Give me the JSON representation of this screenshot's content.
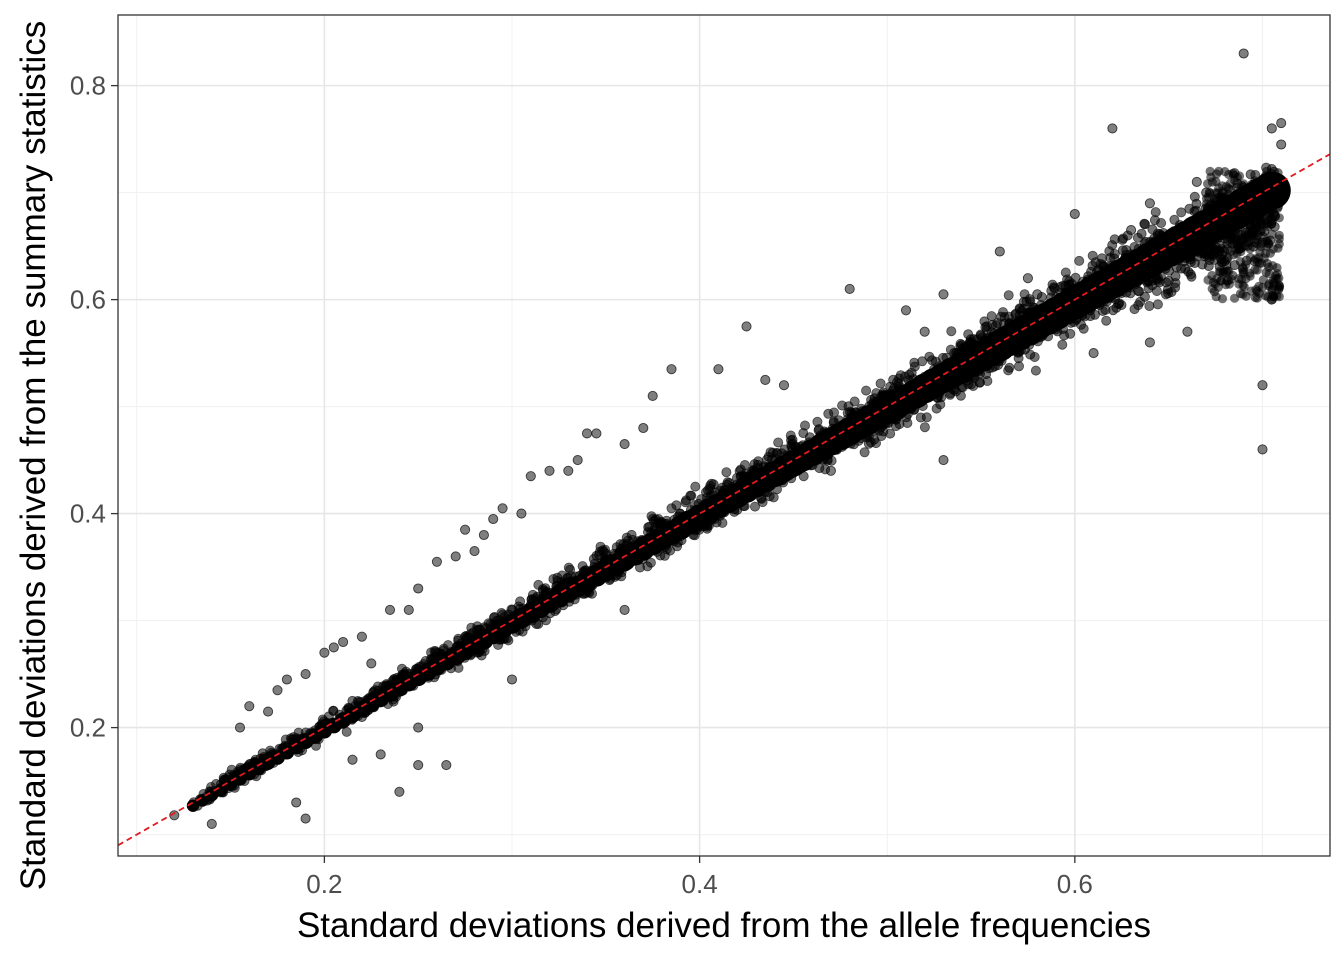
{
  "chart_data": {
    "type": "scatter",
    "xlabel": "Standard deviations derived from the allele frequencies",
    "ylabel": "Standard deviations derived from the summary statistics",
    "xlim": [
      0.09,
      0.736
    ],
    "ylim": [
      0.08,
      0.866
    ],
    "x_ticks": [
      0.2,
      0.4,
      0.6
    ],
    "x_tick_labels": [
      "0.2",
      "0.4",
      "0.6"
    ],
    "y_ticks": [
      0.2,
      0.4,
      0.6,
      0.8
    ],
    "y_tick_labels": [
      "0.2",
      "0.4",
      "0.6",
      "0.8"
    ],
    "grid": true,
    "reference_line": {
      "slope": 1,
      "intercept": 0,
      "style": "dashed",
      "color": "#e41a1c"
    },
    "point_color": "#000000",
    "point_opacity": 0.5,
    "dense_band": {
      "x_range": [
        0.13,
        0.707
      ],
      "y_equals_x_spread": 0.025,
      "note_spread_grows_with_x": true
    },
    "outliers": [
      [
        0.12,
        0.118
      ],
      [
        0.14,
        0.11
      ],
      [
        0.155,
        0.2
      ],
      [
        0.16,
        0.22
      ],
      [
        0.17,
        0.215
      ],
      [
        0.175,
        0.235
      ],
      [
        0.18,
        0.245
      ],
      [
        0.185,
        0.13
      ],
      [
        0.19,
        0.25
      ],
      [
        0.19,
        0.115
      ],
      [
        0.2,
        0.27
      ],
      [
        0.205,
        0.275
      ],
      [
        0.21,
        0.28
      ],
      [
        0.215,
        0.17
      ],
      [
        0.22,
        0.285
      ],
      [
        0.22,
        0.21
      ],
      [
        0.225,
        0.26
      ],
      [
        0.23,
        0.175
      ],
      [
        0.235,
        0.31
      ],
      [
        0.24,
        0.14
      ],
      [
        0.245,
        0.31
      ],
      [
        0.25,
        0.33
      ],
      [
        0.25,
        0.165
      ],
      [
        0.26,
        0.355
      ],
      [
        0.265,
        0.165
      ],
      [
        0.27,
        0.36
      ],
      [
        0.275,
        0.385
      ],
      [
        0.28,
        0.365
      ],
      [
        0.285,
        0.38
      ],
      [
        0.29,
        0.395
      ],
      [
        0.295,
        0.405
      ],
      [
        0.305,
        0.4
      ],
      [
        0.31,
        0.435
      ],
      [
        0.32,
        0.44
      ],
      [
        0.33,
        0.44
      ],
      [
        0.335,
        0.45
      ],
      [
        0.34,
        0.475
      ],
      [
        0.345,
        0.475
      ],
      [
        0.36,
        0.465
      ],
      [
        0.37,
        0.48
      ],
      [
        0.375,
        0.51
      ],
      [
        0.385,
        0.535
      ],
      [
        0.41,
        0.535
      ],
      [
        0.425,
        0.575
      ],
      [
        0.435,
        0.525
      ],
      [
        0.445,
        0.52
      ],
      [
        0.455,
        0.45
      ],
      [
        0.48,
        0.61
      ],
      [
        0.51,
        0.59
      ],
      [
        0.52,
        0.57
      ],
      [
        0.53,
        0.605
      ],
      [
        0.56,
        0.645
      ],
      [
        0.575,
        0.62
      ],
      [
        0.58,
        0.605
      ],
      [
        0.6,
        0.68
      ],
      [
        0.62,
        0.76
      ],
      [
        0.63,
        0.665
      ],
      [
        0.64,
        0.69
      ],
      [
        0.665,
        0.71
      ],
      [
        0.67,
        0.7
      ],
      [
        0.68,
        0.69
      ],
      [
        0.69,
        0.83
      ],
      [
        0.7,
        0.52
      ],
      [
        0.7,
        0.46
      ],
      [
        0.705,
        0.76
      ],
      [
        0.71,
        0.765
      ],
      [
        0.71,
        0.745
      ],
      [
        0.705,
        0.6
      ],
      [
        0.64,
        0.56
      ],
      [
        0.66,
        0.57
      ],
      [
        0.61,
        0.55
      ],
      [
        0.53,
        0.45
      ],
      [
        0.47,
        0.44
      ],
      [
        0.36,
        0.31
      ],
      [
        0.3,
        0.245
      ],
      [
        0.25,
        0.2
      ]
    ]
  }
}
